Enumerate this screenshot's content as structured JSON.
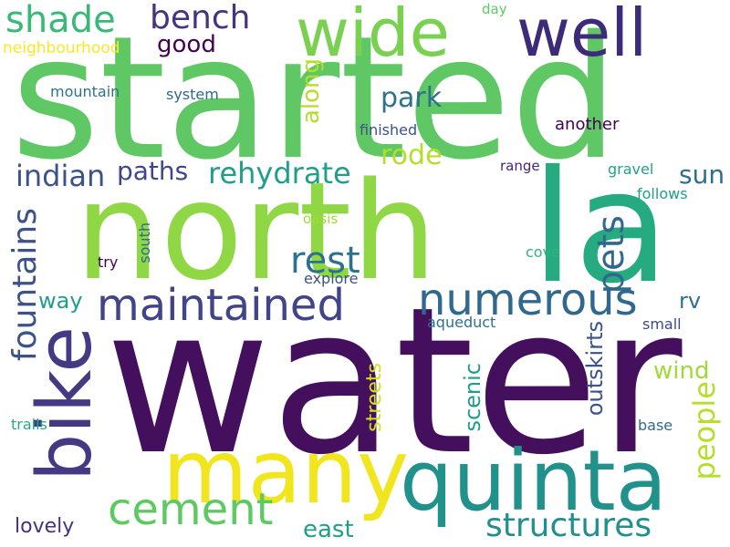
{
  "words": [
    {
      "text": "water",
      "color": "#440f5d",
      "rotate": false
    },
    {
      "text": "started",
      "color": "#5fc864",
      "rotate": false
    },
    {
      "text": "north",
      "color": "#8fd744",
      "rotate": false
    },
    {
      "text": "la",
      "color": "#26aa80",
      "rotate": false
    },
    {
      "text": "quinta",
      "color": "#21918c",
      "rotate": false
    },
    {
      "text": "many",
      "color": "#f1e51d",
      "rotate": false
    },
    {
      "text": "bike",
      "color": "#443a83",
      "rotate": true
    },
    {
      "text": "well",
      "color": "#3d2a78",
      "rotate": false
    },
    {
      "text": "wide",
      "color": "#7ad151",
      "rotate": false
    },
    {
      "text": "maintained",
      "color": "#414487",
      "rotate": false
    },
    {
      "text": "numerous",
      "color": "#31688e",
      "rotate": false
    },
    {
      "text": "cement",
      "color": "#5ec962",
      "rotate": false
    },
    {
      "text": "structures",
      "color": "#218f8d",
      "rotate": false
    },
    {
      "text": "shade",
      "color": "#38b977",
      "rotate": false
    },
    {
      "text": "bench",
      "color": "#463480",
      "rotate": false
    },
    {
      "text": "rest",
      "color": "#2c728e",
      "rotate": false
    },
    {
      "text": "fountains",
      "color": "#3b528b",
      "rotate": true
    },
    {
      "text": "pets",
      "color": "#31688e",
      "rotate": true
    },
    {
      "text": "people",
      "color": "#b5de2b",
      "rotate": true
    },
    {
      "text": "rehydrate",
      "color": "#1f9e89",
      "rotate": false
    },
    {
      "text": "paths",
      "color": "#3f4788",
      "rotate": false
    },
    {
      "text": "indian",
      "color": "#3b528b",
      "rotate": false
    },
    {
      "text": "park",
      "color": "#2c728e",
      "rotate": false
    },
    {
      "text": "rode",
      "color": "#b5de2b",
      "rotate": false
    },
    {
      "text": "sun",
      "color": "#2e6e8e",
      "rotate": false
    },
    {
      "text": "good",
      "color": "#440154",
      "rotate": false
    },
    {
      "text": "along",
      "color": "#b5de2b",
      "rotate": true
    },
    {
      "text": "way",
      "color": "#1f9e89",
      "rotate": false
    },
    {
      "text": "rv",
      "color": "#2c728e",
      "rotate": false
    },
    {
      "text": "wind",
      "color": "#a0da39",
      "rotate": false
    },
    {
      "text": "outskirts",
      "color": "#3b528b",
      "rotate": true
    },
    {
      "text": "scenic",
      "color": "#1f9e89",
      "rotate": true
    },
    {
      "text": "streets",
      "color": "#d0e11c",
      "rotate": true
    },
    {
      "text": "east",
      "color": "#1f9e89",
      "rotate": false
    },
    {
      "text": "lovely",
      "color": "#46327e",
      "rotate": false
    },
    {
      "text": "mountain",
      "color": "#2c728e",
      "rotate": false
    },
    {
      "text": "system",
      "color": "#31688e",
      "rotate": false
    },
    {
      "text": "finished",
      "color": "#3b528b",
      "rotate": false
    },
    {
      "text": "another",
      "color": "#440154",
      "rotate": false
    },
    {
      "text": "range",
      "color": "#482576",
      "rotate": false
    },
    {
      "text": "gravel",
      "color": "#20a386",
      "rotate": false
    },
    {
      "text": "follows",
      "color": "#1f9e89",
      "rotate": false
    },
    {
      "text": "oasis",
      "color": "#a0da39",
      "rotate": false
    },
    {
      "text": "cove",
      "color": "#2fb47c",
      "rotate": false
    },
    {
      "text": "explore",
      "color": "#3b528b",
      "rotate": false
    },
    {
      "text": "aqueduct",
      "color": "#2c728e",
      "rotate": false
    },
    {
      "text": "small",
      "color": "#3e4989",
      "rotate": false
    },
    {
      "text": "base",
      "color": "#31688e",
      "rotate": false
    },
    {
      "text": "trails",
      "color": "#25ab82",
      "rotate": false
    },
    {
      "text": "try",
      "color": "#440154",
      "rotate": false
    },
    {
      "text": "south",
      "color": "#31688e",
      "rotate": true
    },
    {
      "text": "day",
      "color": "#5ec962",
      "rotate": false
    },
    {
      "text": "neighbourhood",
      "color": "#fde725",
      "rotate": false
    }
  ]
}
